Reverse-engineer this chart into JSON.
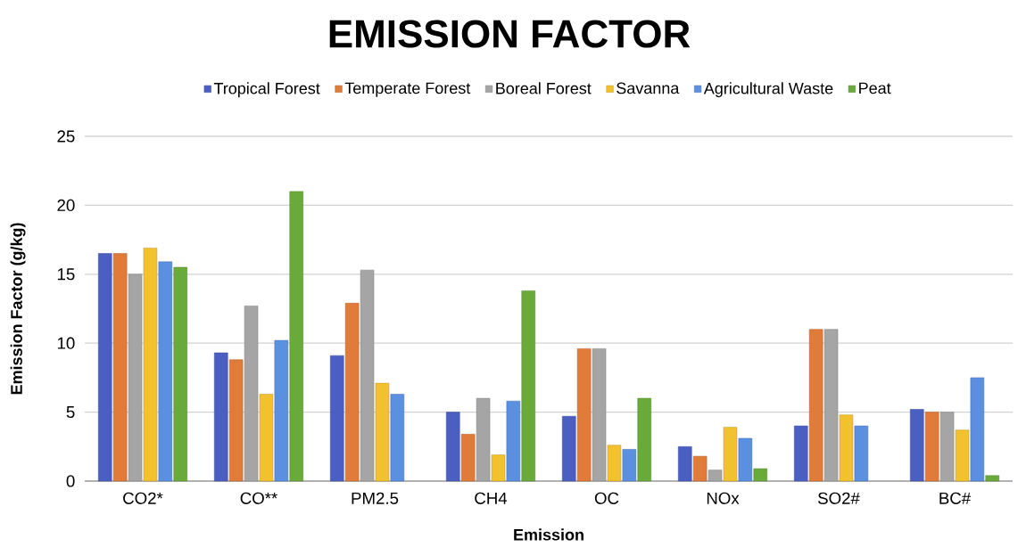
{
  "chart_data": {
    "type": "bar",
    "title": "EMISSION FACTOR",
    "xlabel": "Emission",
    "ylabel": "Emission Factor (g/kg)",
    "categories": [
      "CO2*",
      "CO**",
      "PM2.5",
      "CH4",
      "OC",
      "NOx",
      "SO2#",
      "BC#"
    ],
    "series": [
      {
        "name": "Tropical Forest",
        "color": "#4a5fc1",
        "values": [
          16.5,
          9.3,
          9.1,
          5.0,
          4.7,
          2.5,
          4.0,
          5.2
        ]
      },
      {
        "name": "Temperate Forest",
        "color": "#e07b39",
        "values": [
          16.5,
          8.8,
          12.9,
          3.4,
          9.6,
          1.8,
          11.0,
          5.0
        ]
      },
      {
        "name": "Boreal Forest",
        "color": "#a5a5a5",
        "values": [
          15.0,
          12.7,
          15.3,
          6.0,
          9.6,
          0.8,
          11.0,
          5.0
        ]
      },
      {
        "name": "Savanna",
        "color": "#f2c12e",
        "values": [
          16.9,
          6.3,
          7.1,
          1.9,
          2.6,
          3.9,
          4.8,
          3.7
        ]
      },
      {
        "name": "Agricultural Waste",
        "color": "#5b8fe0",
        "values": [
          15.9,
          10.2,
          6.3,
          5.8,
          2.3,
          3.1,
          4.0,
          7.5
        ]
      },
      {
        "name": "Peat",
        "color": "#6aaa3a",
        "values": [
          15.5,
          21.0,
          null,
          13.8,
          6.0,
          0.9,
          null,
          0.4
        ]
      }
    ],
    "ylim": [
      0,
      25
    ],
    "yticks": [
      0,
      5,
      10,
      15,
      20,
      25
    ],
    "grid": "y",
    "legend": "top"
  }
}
